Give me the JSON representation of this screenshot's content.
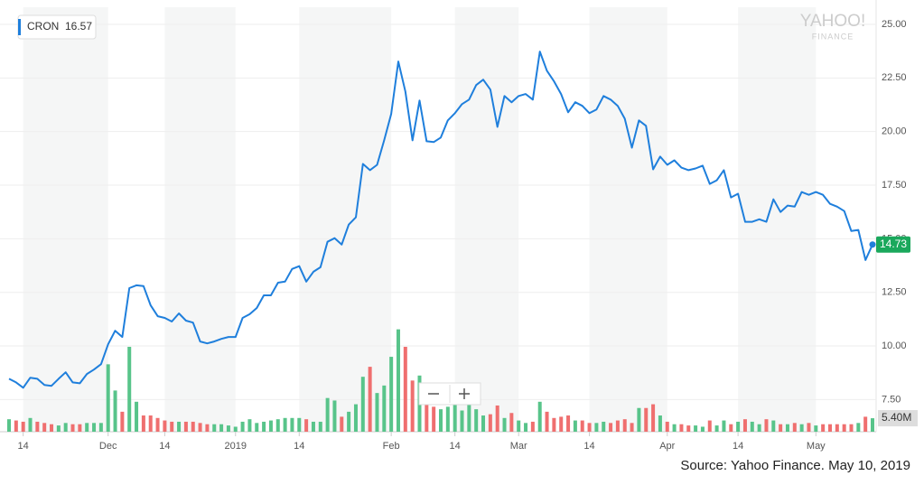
{
  "chart_data": {
    "type": "line",
    "categories": [
      null,
      null,
      "14",
      null,
      null,
      null,
      null,
      null,
      null,
      null,
      null,
      null,
      null,
      null,
      "Dec",
      null,
      null,
      null,
      null,
      null,
      null,
      null,
      "14",
      null,
      null,
      null,
      null,
      null,
      null,
      null,
      null,
      null,
      "2019",
      null,
      null,
      null,
      null,
      null,
      null,
      null,
      null,
      "14",
      null,
      null,
      null,
      null,
      null,
      null,
      null,
      null,
      null,
      null,
      null,
      null,
      "Feb",
      null,
      null,
      null,
      null,
      null,
      null,
      null,
      null,
      "14",
      null,
      null,
      null,
      null,
      null,
      null,
      null,
      null,
      "Mar",
      null,
      null,
      null,
      null,
      null,
      null,
      null,
      null,
      null,
      "14",
      null,
      null,
      null,
      null,
      null,
      null,
      null,
      null,
      null,
      null,
      "Apr",
      null,
      null,
      null,
      null,
      null,
      null,
      null,
      null,
      null,
      "14",
      null,
      null,
      null,
      null,
      null,
      null,
      null,
      null,
      null,
      null,
      "May",
      null,
      null,
      null,
      null,
      null,
      null,
      null,
      null
    ],
    "series": [
      {
        "name": "CRON",
        "color": "#1f7fdc",
        "values": [
          8.47,
          8.3,
          8.05,
          8.52,
          8.47,
          8.18,
          8.14,
          8.47,
          8.77,
          8.3,
          8.26,
          8.69,
          8.9,
          9.15,
          10.08,
          10.71,
          10.42,
          12.7,
          12.83,
          12.79,
          11.9,
          11.39,
          11.31,
          11.14,
          11.52,
          11.18,
          11.09,
          10.21,
          10.12,
          10.21,
          10.33,
          10.42,
          10.42,
          11.31,
          11.48,
          11.77,
          12.36,
          12.36,
          12.95,
          13.0,
          13.59,
          13.72,
          13.0,
          13.46,
          13.67,
          14.86,
          15.03,
          14.73,
          15.66,
          16.0,
          18.49,
          18.2,
          18.45,
          19.59,
          20.82,
          23.27,
          21.87,
          19.59,
          21.45,
          19.55,
          19.51,
          19.72,
          20.52,
          20.86,
          21.28,
          21.49,
          22.17,
          22.42,
          21.96,
          20.22,
          21.66,
          21.37,
          21.66,
          21.75,
          21.49,
          23.73,
          22.84,
          22.34,
          21.75,
          20.9,
          21.37,
          21.2,
          20.86,
          21.03,
          21.66,
          21.49,
          21.2,
          20.6,
          19.25,
          20.52,
          20.27,
          18.24,
          18.83,
          18.45,
          18.66,
          18.32,
          18.2,
          18.28,
          18.41,
          17.56,
          17.73,
          18.2,
          16.93,
          17.1,
          15.79,
          15.79,
          15.91,
          15.79,
          16.84,
          16.25,
          16.55,
          16.5,
          17.18,
          17.05,
          17.18,
          17.05,
          16.63,
          16.5,
          16.29,
          15.36,
          15.41,
          14.01,
          14.73
        ]
      },
      {
        "name": "Volume",
        "type": "bar",
        "axis": "y2",
        "up_color": "#58c48a",
        "down_color": "#ef6f6f",
        "values": [
          5,
          4.5,
          4,
          5.5,
          4,
          3.5,
          3,
          2.5,
          3.5,
          3,
          3,
          3.5,
          3.5,
          3.5,
          27,
          16.5,
          8,
          34,
          12,
          6.5,
          6.5,
          5.5,
          4.5,
          4,
          4,
          4,
          4,
          3.5,
          3,
          3,
          3,
          2.5,
          2,
          4,
          5,
          3.5,
          4,
          4.5,
          5,
          5.5,
          5.5,
          5.5,
          5,
          4,
          4,
          13.5,
          12.5,
          6,
          8,
          11,
          22,
          26,
          15.5,
          18.5,
          30,
          41,
          34,
          20.5,
          22.5,
          12.5,
          10,
          9,
          10,
          11,
          8.5,
          11,
          9,
          6.5,
          7,
          10.5,
          5.5,
          7.5,
          4.5,
          3.5,
          4,
          12,
          8,
          5.5,
          6,
          6.5,
          4.5,
          4.5,
          3.5,
          3.5,
          4,
          3.5,
          4.5,
          5,
          3.5,
          9.5,
          9.5,
          11,
          6.5,
          4,
          3,
          3,
          2.5,
          2.5,
          2,
          4.5,
          2.5,
          4.5,
          3,
          4,
          5,
          4,
          3,
          5,
          4.5,
          3,
          3,
          3.5,
          3,
          3.5,
          2.5,
          3,
          3,
          3,
          3,
          3,
          3.5,
          6,
          5.4
        ],
        "value_labels": [
          null,
          null,
          null,
          null,
          null,
          null,
          null,
          null,
          null,
          null,
          null,
          null,
          null,
          null,
          null,
          null,
          null,
          null,
          null,
          null,
          null,
          null,
          null,
          null,
          null,
          null,
          null,
          null,
          null,
          null,
          null,
          null,
          null,
          null,
          null,
          null,
          null,
          null,
          null,
          null,
          null,
          null,
          null,
          null,
          null,
          null,
          null,
          null,
          null,
          null,
          null,
          null,
          null,
          null,
          null,
          null,
          null,
          null,
          null,
          null,
          null,
          null,
          null,
          null,
          null,
          null,
          null,
          null,
          null,
          null,
          null,
          null,
          null,
          null,
          null,
          null,
          null,
          null,
          null,
          null,
          null,
          null,
          null,
          null,
          null,
          null,
          null,
          null,
          null,
          null,
          null,
          null,
          null,
          null,
          null,
          null,
          null,
          null,
          null,
          null,
          null,
          null,
          null,
          null,
          null,
          null,
          null,
          null,
          null,
          null,
          null,
          null,
          null,
          null,
          null,
          null,
          null,
          null,
          null,
          null,
          null,
          null,
          "5.40M"
        ]
      }
    ],
    "legend_value": 16.57,
    "ylim": [
      6,
      25.8
    ],
    "yticks": [
      {
        "value": 7.5,
        "label": "7.50"
      },
      {
        "value": 10,
        "label": "10.00"
      },
      {
        "value": 12.5,
        "label": "12.50"
      },
      {
        "value": 15,
        "label": "15.00"
      },
      {
        "value": 17.5,
        "label": "17.50"
      },
      {
        "value": 20,
        "label": "20.00"
      },
      {
        "value": 22.5,
        "label": "22.50"
      },
      {
        "value": 25,
        "label": "25.00"
      }
    ],
    "y2lim": [
      0,
      170
    ],
    "grid": true,
    "logo": "YAHOO!",
    "logo_sub": "FINANCE",
    "source": "Source: Yahoo Finance. May 10, 2019"
  }
}
